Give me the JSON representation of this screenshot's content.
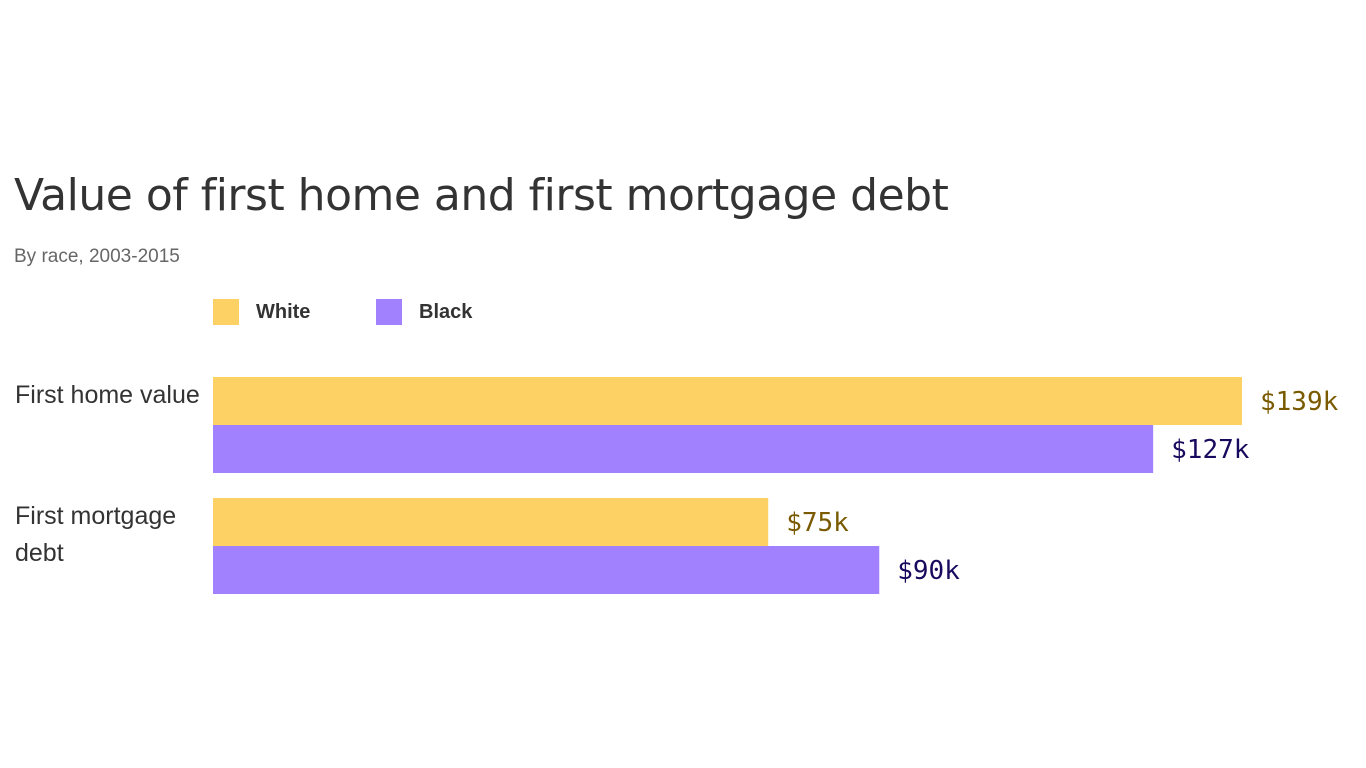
{
  "chart_data": {
    "type": "bar",
    "orientation": "horizontal",
    "title": "Value of first home and first mortgage debt",
    "subtitle": "By race, 2003-2015",
    "categories": [
      "First home value",
      "First mortgage debt"
    ],
    "series": [
      {
        "name": "White",
        "values": [
          139,
          75
        ],
        "labels": [
          "$139k",
          "$75k"
        ],
        "color": "#FDD164",
        "label_color": "#7A5A00"
      },
      {
        "name": "Black",
        "values": [
          127,
          90
        ],
        "labels": [
          "$127k",
          "$90k"
        ],
        "color": "#A281FF",
        "label_color": "#1A0A5E"
      }
    ],
    "xlim": [
      0,
      139
    ],
    "legend_placement": "top",
    "grid": false
  }
}
